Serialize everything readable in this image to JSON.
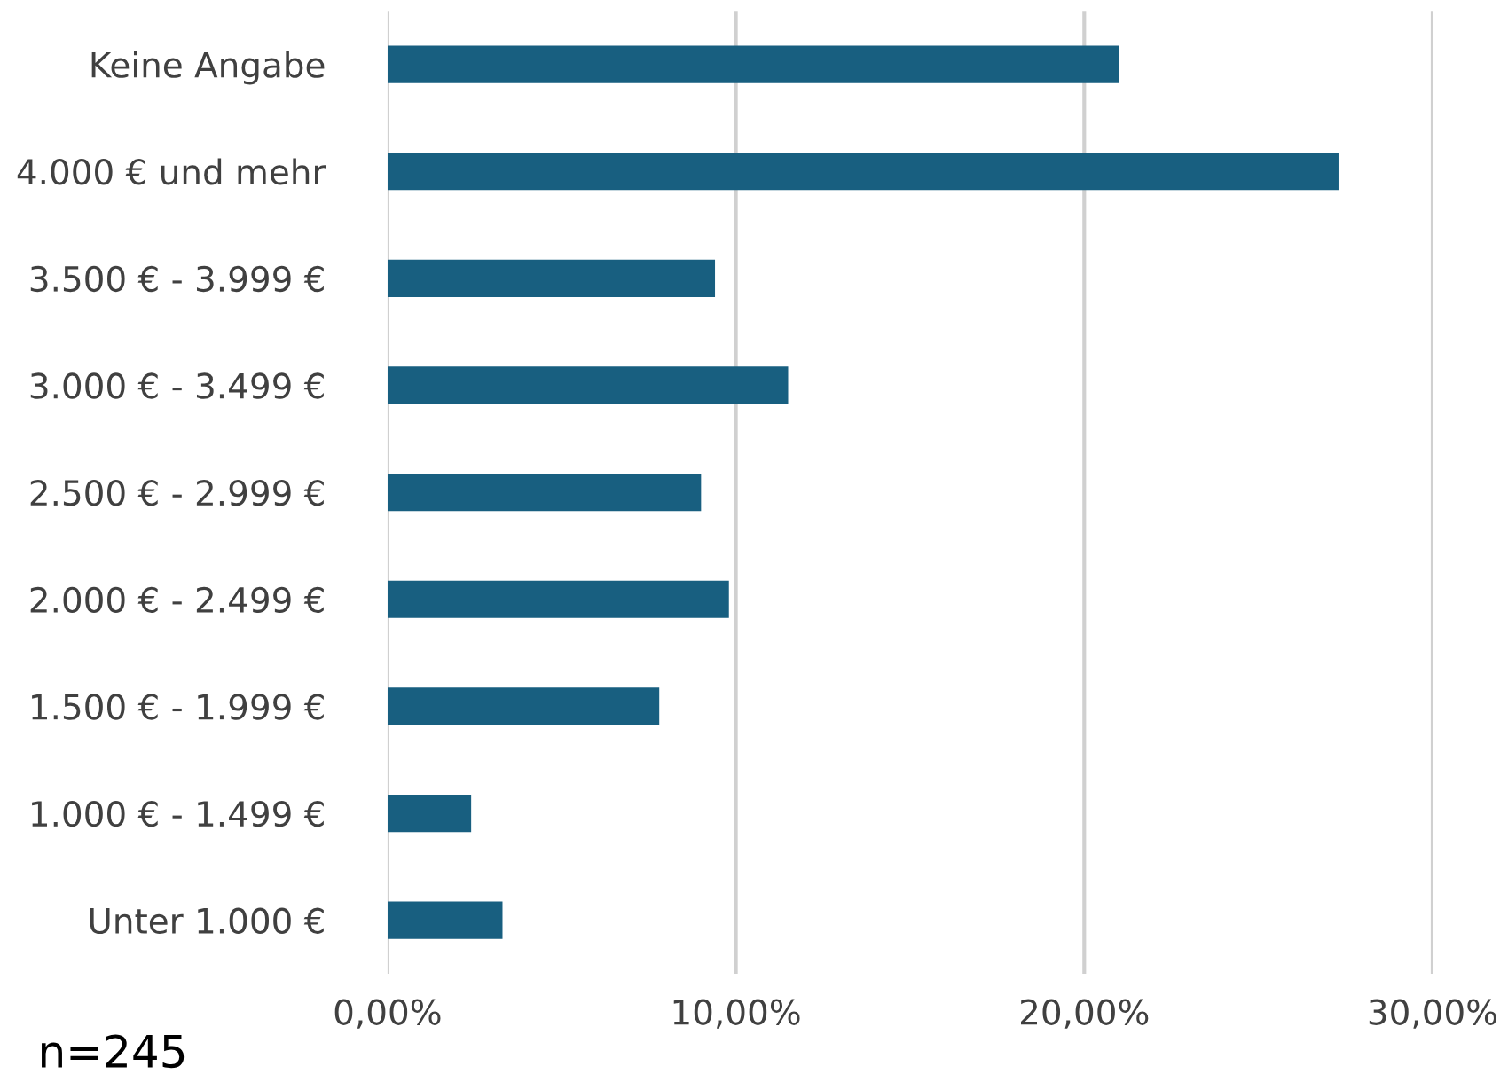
{
  "chart_data": {
    "type": "bar",
    "orientation": "horizontal",
    "categories": [
      "Keine Angabe",
      "4.000 € und mehr",
      "3.500 € - 3.999 €",
      "3.000 € - 3.499 €",
      "2.500 € - 2.999 €",
      "2.000 € - 2.499 €",
      "1.500 € - 1.999 €",
      "1.000 € - 1.499 €",
      "Unter 1.000 €"
    ],
    "values": [
      21.0,
      27.3,
      9.4,
      11.5,
      9.0,
      9.8,
      7.8,
      2.4,
      3.3
    ],
    "color": "#185f80",
    "xlim": [
      0,
      30
    ],
    "xticks": [
      {
        "value": 0,
        "label": "0,00%"
      },
      {
        "value": 10,
        "label": "10,00%"
      },
      {
        "value": 20,
        "label": "20,00%"
      },
      {
        "value": 30,
        "label": "30,00%"
      }
    ],
    "grid": "x",
    "legend": false,
    "annotations": [
      "n=245"
    ]
  }
}
